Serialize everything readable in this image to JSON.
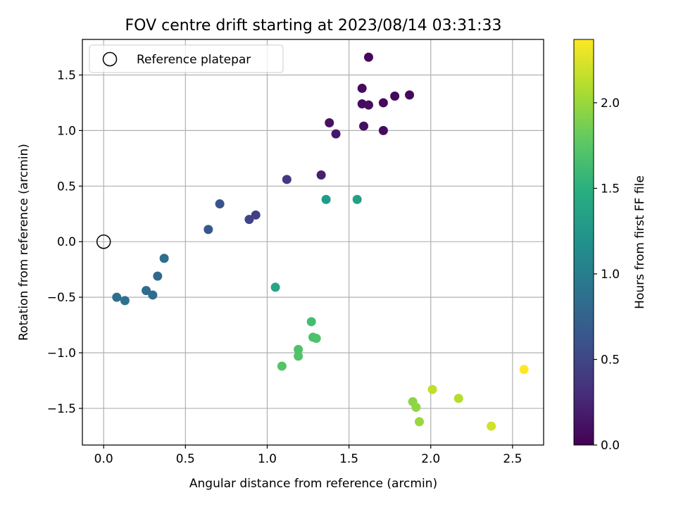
{
  "chart_data": {
    "type": "scatter",
    "title": "FOV centre drift starting at 2023/08/14 03:31:33",
    "xlabel": "Angular distance from reference (arcmin)",
    "ylabel": "Rotation from reference (arcmin)",
    "xlim": [
      -0.13,
      2.69
    ],
    "ylim": [
      -1.83,
      1.82
    ],
    "x_ticks": [
      0.0,
      0.5,
      1.0,
      1.5,
      2.0,
      2.5
    ],
    "x_tick_labels": [
      "0.0",
      "0.5",
      "1.0",
      "1.5",
      "2.0",
      "2.5"
    ],
    "y_ticks": [
      -1.5,
      -1.0,
      -0.5,
      0.0,
      0.5,
      1.0,
      1.5
    ],
    "y_tick_labels": [
      "−1.5",
      "−1.0",
      "−0.5",
      "0.0",
      "0.5",
      "1.0",
      "1.5"
    ],
    "grid": true,
    "legend": {
      "placement": "top-left",
      "entries": [
        {
          "label": "Reference platepar",
          "marker": "open-circle"
        }
      ]
    },
    "reference_point": {
      "x": 0.0,
      "y": 0.0
    },
    "colorbar": {
      "label": "Hours from first FF file",
      "colormap": "viridis",
      "range": [
        0.0,
        2.37
      ],
      "ticks": [
        0.0,
        0.5,
        1.0,
        1.5,
        2.0
      ],
      "tick_labels": [
        "0.0",
        "0.5",
        "1.0",
        "1.5",
        "2.0"
      ]
    },
    "points": [
      {
        "x": 1.62,
        "y": 1.66,
        "hours": 0.05
      },
      {
        "x": 1.58,
        "y": 1.38,
        "hours": 0.07
      },
      {
        "x": 1.58,
        "y": 1.24,
        "hours": 0.08
      },
      {
        "x": 1.62,
        "y": 1.23,
        "hours": 0.09
      },
      {
        "x": 1.71,
        "y": 1.25,
        "hours": 0.06
      },
      {
        "x": 1.78,
        "y": 1.31,
        "hours": 0.05
      },
      {
        "x": 1.87,
        "y": 1.32,
        "hours": 0.06
      },
      {
        "x": 1.59,
        "y": 1.04,
        "hours": 0.1
      },
      {
        "x": 1.71,
        "y": 1.0,
        "hours": 0.07
      },
      {
        "x": 1.38,
        "y": 1.07,
        "hours": 0.12
      },
      {
        "x": 1.42,
        "y": 0.97,
        "hours": 0.15
      },
      {
        "x": 1.33,
        "y": 0.6,
        "hours": 0.2
      },
      {
        "x": 1.12,
        "y": 0.56,
        "hours": 0.4
      },
      {
        "x": 0.93,
        "y": 0.24,
        "hours": 0.45
      },
      {
        "x": 0.89,
        "y": 0.2,
        "hours": 0.48
      },
      {
        "x": 0.71,
        "y": 0.34,
        "hours": 0.62
      },
      {
        "x": 0.64,
        "y": 0.11,
        "hours": 0.65
      },
      {
        "x": 0.37,
        "y": -0.15,
        "hours": 0.85
      },
      {
        "x": 0.33,
        "y": -0.31,
        "hours": 0.8
      },
      {
        "x": 0.26,
        "y": -0.44,
        "hours": 0.83
      },
      {
        "x": 0.3,
        "y": -0.48,
        "hours": 0.84
      },
      {
        "x": 0.08,
        "y": -0.5,
        "hours": 0.86
      },
      {
        "x": 0.13,
        "y": -0.53,
        "hours": 0.88
      },
      {
        "x": 1.36,
        "y": 0.38,
        "hours": 1.3
      },
      {
        "x": 1.55,
        "y": 0.38,
        "hours": 1.35
      },
      {
        "x": 1.05,
        "y": -0.41,
        "hours": 1.4
      },
      {
        "x": 1.27,
        "y": -0.72,
        "hours": 1.65
      },
      {
        "x": 1.28,
        "y": -0.86,
        "hours": 1.68
      },
      {
        "x": 1.3,
        "y": -0.87,
        "hours": 1.7
      },
      {
        "x": 1.19,
        "y": -0.97,
        "hours": 1.7
      },
      {
        "x": 1.19,
        "y": -1.03,
        "hours": 1.72
      },
      {
        "x": 1.09,
        "y": -1.12,
        "hours": 1.73
      },
      {
        "x": 2.01,
        "y": -1.33,
        "hours": 2.15
      },
      {
        "x": 1.89,
        "y": -1.44,
        "hours": 1.95
      },
      {
        "x": 1.91,
        "y": -1.49,
        "hours": 1.97
      },
      {
        "x": 1.93,
        "y": -1.62,
        "hours": 2.0
      },
      {
        "x": 2.17,
        "y": -1.41,
        "hours": 2.1
      },
      {
        "x": 2.37,
        "y": -1.66,
        "hours": 2.2
      },
      {
        "x": 2.57,
        "y": -1.15,
        "hours": 2.37
      }
    ]
  }
}
